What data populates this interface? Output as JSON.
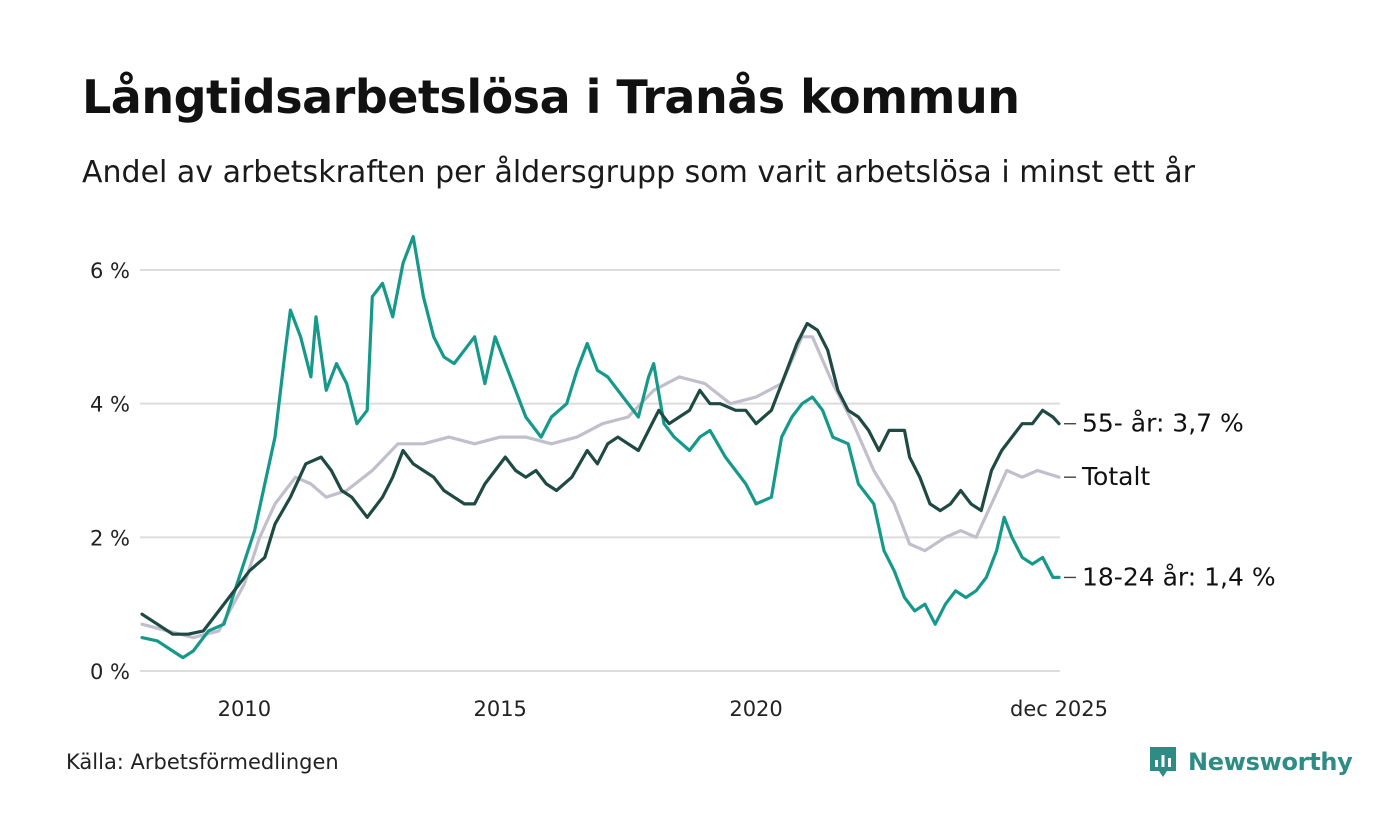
{
  "title": "Långtidsarbetslösa i Tranås kommun",
  "subtitle": "Andel av arbetskraften per åldersgrupp som varit arbetslösa i minst ett år",
  "source": "Källa: Arbetsförmedlingen",
  "brand": {
    "name": "Newsworthy",
    "icon": "newsworthy-logo-icon",
    "color": "#2f8c84"
  },
  "chart_data": {
    "type": "line",
    "ylim": [
      0,
      6.4
    ],
    "yticks": [
      0,
      2,
      4,
      6
    ],
    "ytick_labels": [
      "0 %",
      "2 %",
      "4 %",
      "6 %"
    ],
    "xlim": [
      2008.0,
      2025.92
    ],
    "xticks": [
      2010,
      2015,
      2020,
      2025.92
    ],
    "xtick_labels": [
      "2010",
      "2015",
      "2020",
      "dec 2025"
    ],
    "grid": true,
    "series": [
      {
        "name": "Totalt",
        "label": "Totalt",
        "color": "#c2bfcd",
        "points": [
          [
            2008.0,
            0.7
          ],
          [
            2008.5,
            0.6
          ],
          [
            2009.0,
            0.5
          ],
          [
            2009.5,
            0.6
          ],
          [
            2010.0,
            1.3
          ],
          [
            2010.3,
            2.0
          ],
          [
            2010.6,
            2.5
          ],
          [
            2011.0,
            2.9
          ],
          [
            2011.3,
            2.8
          ],
          [
            2011.6,
            2.6
          ],
          [
            2012.0,
            2.7
          ],
          [
            2012.5,
            3.0
          ],
          [
            2013.0,
            3.4
          ],
          [
            2013.5,
            3.4
          ],
          [
            2014.0,
            3.5
          ],
          [
            2014.5,
            3.4
          ],
          [
            2015.0,
            3.5
          ],
          [
            2015.5,
            3.5
          ],
          [
            2016.0,
            3.4
          ],
          [
            2016.5,
            3.5
          ],
          [
            2017.0,
            3.7
          ],
          [
            2017.5,
            3.8
          ],
          [
            2018.0,
            4.2
          ],
          [
            2018.5,
            4.4
          ],
          [
            2019.0,
            4.3
          ],
          [
            2019.5,
            4.0
          ],
          [
            2020.0,
            4.1
          ],
          [
            2020.5,
            4.3
          ],
          [
            2020.9,
            5.0
          ],
          [
            2021.1,
            5.0
          ],
          [
            2021.5,
            4.3
          ],
          [
            2021.9,
            3.7
          ],
          [
            2022.3,
            3.0
          ],
          [
            2022.7,
            2.5
          ],
          [
            2023.0,
            1.9
          ],
          [
            2023.3,
            1.8
          ],
          [
            2023.7,
            2.0
          ],
          [
            2024.0,
            2.1
          ],
          [
            2024.3,
            2.0
          ],
          [
            2024.6,
            2.5
          ],
          [
            2024.9,
            3.0
          ],
          [
            2025.2,
            2.9
          ],
          [
            2025.5,
            3.0
          ],
          [
            2025.92,
            2.9
          ]
        ]
      },
      {
        "name": "18-24 år",
        "label": "18-24 år: 1,4 %",
        "color": "#16998a",
        "points": [
          [
            2008.0,
            0.5
          ],
          [
            2008.3,
            0.45
          ],
          [
            2008.6,
            0.3
          ],
          [
            2008.8,
            0.2
          ],
          [
            2009.0,
            0.3
          ],
          [
            2009.3,
            0.6
          ],
          [
            2009.6,
            0.7
          ],
          [
            2009.9,
            1.4
          ],
          [
            2010.2,
            2.1
          ],
          [
            2010.4,
            2.8
          ],
          [
            2010.6,
            3.5
          ],
          [
            2010.8,
            4.8
          ],
          [
            2010.9,
            5.4
          ],
          [
            2011.1,
            5.0
          ],
          [
            2011.3,
            4.4
          ],
          [
            2011.4,
            5.3
          ],
          [
            2011.6,
            4.2
          ],
          [
            2011.8,
            4.6
          ],
          [
            2012.0,
            4.3
          ],
          [
            2012.2,
            3.7
          ],
          [
            2012.4,
            3.9
          ],
          [
            2012.5,
            5.6
          ],
          [
            2012.7,
            5.8
          ],
          [
            2012.9,
            5.3
          ],
          [
            2013.1,
            6.1
          ],
          [
            2013.3,
            6.5
          ],
          [
            2013.5,
            5.6
          ],
          [
            2013.7,
            5.0
          ],
          [
            2013.9,
            4.7
          ],
          [
            2014.1,
            4.6
          ],
          [
            2014.3,
            4.8
          ],
          [
            2014.5,
            5.0
          ],
          [
            2014.7,
            4.3
          ],
          [
            2014.9,
            5.0
          ],
          [
            2015.1,
            4.6
          ],
          [
            2015.3,
            4.2
          ],
          [
            2015.5,
            3.8
          ],
          [
            2015.8,
            3.5
          ],
          [
            2016.0,
            3.8
          ],
          [
            2016.3,
            4.0
          ],
          [
            2016.5,
            4.5
          ],
          [
            2016.7,
            4.9
          ],
          [
            2016.9,
            4.5
          ],
          [
            2017.1,
            4.4
          ],
          [
            2017.4,
            4.1
          ],
          [
            2017.7,
            3.8
          ],
          [
            2017.9,
            4.4
          ],
          [
            2018.0,
            4.6
          ],
          [
            2018.2,
            3.7
          ],
          [
            2018.4,
            3.5
          ],
          [
            2018.7,
            3.3
          ],
          [
            2018.9,
            3.5
          ],
          [
            2019.1,
            3.6
          ],
          [
            2019.4,
            3.2
          ],
          [
            2019.6,
            3.0
          ],
          [
            2019.8,
            2.8
          ],
          [
            2020.0,
            2.5
          ],
          [
            2020.3,
            2.6
          ],
          [
            2020.5,
            3.5
          ],
          [
            2020.7,
            3.8
          ],
          [
            2020.9,
            4.0
          ],
          [
            2021.1,
            4.1
          ],
          [
            2021.3,
            3.9
          ],
          [
            2021.5,
            3.5
          ],
          [
            2021.8,
            3.4
          ],
          [
            2022.0,
            2.8
          ],
          [
            2022.3,
            2.5
          ],
          [
            2022.5,
            1.8
          ],
          [
            2022.7,
            1.5
          ],
          [
            2022.9,
            1.1
          ],
          [
            2023.1,
            0.9
          ],
          [
            2023.3,
            1.0
          ],
          [
            2023.5,
            0.7
          ],
          [
            2023.7,
            1.0
          ],
          [
            2023.9,
            1.2
          ],
          [
            2024.1,
            1.1
          ],
          [
            2024.3,
            1.2
          ],
          [
            2024.5,
            1.4
          ],
          [
            2024.7,
            1.8
          ],
          [
            2024.85,
            2.3
          ],
          [
            2025.0,
            2.0
          ],
          [
            2025.2,
            1.7
          ],
          [
            2025.4,
            1.6
          ],
          [
            2025.6,
            1.7
          ],
          [
            2025.8,
            1.4
          ],
          [
            2025.92,
            1.4
          ]
        ]
      },
      {
        "name": "55- år",
        "label": "55- år: 3,7 %",
        "color": "#1e4a43",
        "points": [
          [
            2008.0,
            0.85
          ],
          [
            2008.3,
            0.7
          ],
          [
            2008.6,
            0.55
          ],
          [
            2008.9,
            0.55
          ],
          [
            2009.2,
            0.6
          ],
          [
            2009.5,
            0.9
          ],
          [
            2009.8,
            1.2
          ],
          [
            2010.1,
            1.5
          ],
          [
            2010.4,
            1.7
          ],
          [
            2010.6,
            2.2
          ],
          [
            2010.9,
            2.6
          ],
          [
            2011.2,
            3.1
          ],
          [
            2011.5,
            3.2
          ],
          [
            2011.7,
            3.0
          ],
          [
            2011.9,
            2.7
          ],
          [
            2012.1,
            2.6
          ],
          [
            2012.4,
            2.3
          ],
          [
            2012.7,
            2.6
          ],
          [
            2012.9,
            2.9
          ],
          [
            2013.1,
            3.3
          ],
          [
            2013.3,
            3.1
          ],
          [
            2013.5,
            3.0
          ],
          [
            2013.7,
            2.9
          ],
          [
            2013.9,
            2.7
          ],
          [
            2014.1,
            2.6
          ],
          [
            2014.3,
            2.5
          ],
          [
            2014.5,
            2.5
          ],
          [
            2014.7,
            2.8
          ],
          [
            2014.9,
            3.0
          ],
          [
            2015.1,
            3.2
          ],
          [
            2015.3,
            3.0
          ],
          [
            2015.5,
            2.9
          ],
          [
            2015.7,
            3.0
          ],
          [
            2015.9,
            2.8
          ],
          [
            2016.1,
            2.7
          ],
          [
            2016.4,
            2.9
          ],
          [
            2016.7,
            3.3
          ],
          [
            2016.9,
            3.1
          ],
          [
            2017.1,
            3.4
          ],
          [
            2017.3,
            3.5
          ],
          [
            2017.5,
            3.4
          ],
          [
            2017.7,
            3.3
          ],
          [
            2017.9,
            3.6
          ],
          [
            2018.1,
            3.9
          ],
          [
            2018.3,
            3.7
          ],
          [
            2018.5,
            3.8
          ],
          [
            2018.7,
            3.9
          ],
          [
            2018.9,
            4.2
          ],
          [
            2019.1,
            4.0
          ],
          [
            2019.3,
            4.0
          ],
          [
            2019.6,
            3.9
          ],
          [
            2019.8,
            3.9
          ],
          [
            2020.0,
            3.7
          ],
          [
            2020.3,
            3.9
          ],
          [
            2020.6,
            4.5
          ],
          [
            2020.8,
            4.9
          ],
          [
            2021.0,
            5.2
          ],
          [
            2021.2,
            5.1
          ],
          [
            2021.4,
            4.8
          ],
          [
            2021.6,
            4.2
          ],
          [
            2021.8,
            3.9
          ],
          [
            2022.0,
            3.8
          ],
          [
            2022.2,
            3.6
          ],
          [
            2022.4,
            3.3
          ],
          [
            2022.6,
            3.6
          ],
          [
            2022.9,
            3.6
          ],
          [
            2023.0,
            3.2
          ],
          [
            2023.2,
            2.9
          ],
          [
            2023.4,
            2.5
          ],
          [
            2023.6,
            2.4
          ],
          [
            2023.8,
            2.5
          ],
          [
            2024.0,
            2.7
          ],
          [
            2024.2,
            2.5
          ],
          [
            2024.4,
            2.4
          ],
          [
            2024.6,
            3.0
          ],
          [
            2024.8,
            3.3
          ],
          [
            2025.0,
            3.5
          ],
          [
            2025.2,
            3.7
          ],
          [
            2025.4,
            3.7
          ],
          [
            2025.6,
            3.9
          ],
          [
            2025.8,
            3.8
          ],
          [
            2025.92,
            3.7
          ]
        ]
      }
    ]
  }
}
